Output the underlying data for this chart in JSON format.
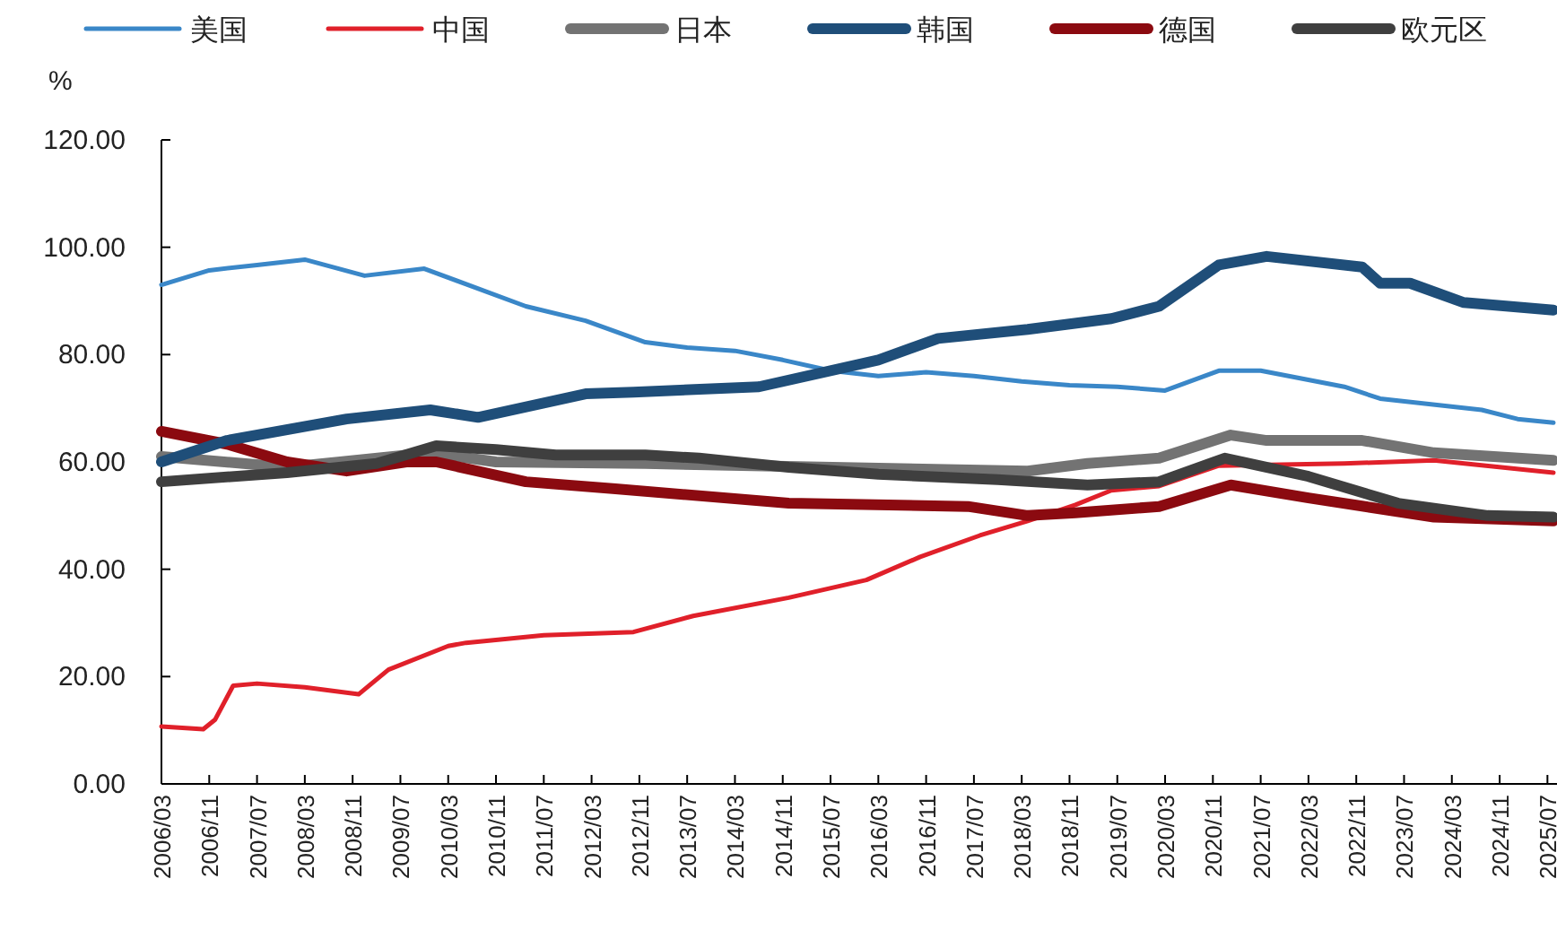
{
  "chart_data": {
    "type": "line",
    "ylabel": "%",
    "legend": "top",
    "line_style": "solid",
    "marker": "none",
    "xlim": [
      "2006-03",
      "2025-08"
    ],
    "ylim": [
      0,
      120
    ],
    "yticks": [
      {
        "value": 0,
        "label": "0.00"
      },
      {
        "value": 20,
        "label": "20.00"
      },
      {
        "value": 40,
        "label": "40.00"
      },
      {
        "value": 60,
        "label": "60.00"
      },
      {
        "value": 80,
        "label": "80.00"
      },
      {
        "value": 100,
        "label": "100.00"
      },
      {
        "value": 120,
        "label": "120.00"
      }
    ],
    "xticks": [
      {
        "value": "2006-03",
        "label": "2006/03"
      },
      {
        "value": "2006-11",
        "label": "2006/11"
      },
      {
        "value": "2007-07",
        "label": "2007/07"
      },
      {
        "value": "2008-03",
        "label": "2008/03"
      },
      {
        "value": "2008-11",
        "label": "2008/11"
      },
      {
        "value": "2009-07",
        "label": "2009/07"
      },
      {
        "value": "2010-03",
        "label": "2010/03"
      },
      {
        "value": "2010-11",
        "label": "2010/11"
      },
      {
        "value": "2011-07",
        "label": "2011/07"
      },
      {
        "value": "2012-03",
        "label": "2012/03"
      },
      {
        "value": "2012-11",
        "label": "2012/11"
      },
      {
        "value": "2013-07",
        "label": "2013/07"
      },
      {
        "value": "2014-03",
        "label": "2014/03"
      },
      {
        "value": "2014-11",
        "label": "2014/11"
      },
      {
        "value": "2015-07",
        "label": "2015/07"
      },
      {
        "value": "2016-03",
        "label": "2016/03"
      },
      {
        "value": "2016-11",
        "label": "2016/11"
      },
      {
        "value": "2017-07",
        "label": "2017/07"
      },
      {
        "value": "2018-03",
        "label": "2018/03"
      },
      {
        "value": "2018-11",
        "label": "2018/11"
      },
      {
        "value": "2019-07",
        "label": "2019/07"
      },
      {
        "value": "2020-03",
        "label": "2020/03"
      },
      {
        "value": "2020-11",
        "label": "2020/11"
      },
      {
        "value": "2021-07",
        "label": "2021/07"
      },
      {
        "value": "2022-03",
        "label": "2022/03"
      },
      {
        "value": "2022-11",
        "label": "2022/11"
      },
      {
        "value": "2023-07",
        "label": "2023/07"
      },
      {
        "value": "2024-03",
        "label": "2024/03"
      },
      {
        "value": "2024-11",
        "label": "2024/11"
      },
      {
        "value": "2025-07",
        "label": "2025/07"
      }
    ],
    "series": [
      {
        "name": "美国",
        "color": "#3a87c8",
        "x": [
          "2006-03",
          "2006-11",
          "2007-07",
          "2008-03",
          "2009-01",
          "2009-11",
          "2011-04",
          "2012-02",
          "2012-12",
          "2013-07",
          "2014-03",
          "2014-11",
          "2015-07",
          "2016-03",
          "2016-11",
          "2017-07",
          "2018-03",
          "2018-11",
          "2019-07",
          "2020-03",
          "2020-12",
          "2021-07",
          "2022-09",
          "2023-03",
          "2024-08",
          "2025-02",
          "2025-08"
        ],
        "values": [
          93,
          95.7,
          96.7,
          97.7,
          94.7,
          96,
          89,
          86.3,
          82.3,
          81.3,
          80.7,
          79,
          77,
          76,
          76.7,
          76,
          75,
          74.3,
          74,
          73.3,
          77,
          77,
          74,
          71.8,
          69.7,
          68,
          67.3
        ]
      },
      {
        "name": "中国",
        "color": "#e0202a",
        "x": [
          "2006-03",
          "2006-10",
          "2006-12",
          "2007-03",
          "2007-07",
          "2008-03",
          "2008-12",
          "2009-05",
          "2010-03",
          "2010-06",
          "2011-07",
          "2012-10",
          "2013-08",
          "2014-12",
          "2016-01",
          "2016-10",
          "2017-08",
          "2018-04",
          "2018-12",
          "2019-06",
          "2020-02",
          "2020-12",
          "2022-09",
          "2023-12",
          "2025-08"
        ],
        "values": [
          10.7,
          10.2,
          12,
          18.3,
          18.7,
          18,
          16.7,
          21.3,
          25.7,
          26.3,
          27.7,
          28.3,
          31.3,
          34.7,
          38,
          42.3,
          46.3,
          49,
          52,
          54.7,
          55.5,
          59.3,
          59.7,
          60.3,
          58
        ]
      },
      {
        "name": "日本",
        "color": "#737373",
        "x": [
          "2006-03",
          "2007-12",
          "2009-12",
          "2010-11",
          "2012-12",
          "2018-04",
          "2019-02",
          "2020-02",
          "2021-02",
          "2021-08",
          "2022-12",
          "2023-12",
          "2025-08"
        ],
        "values": [
          61,
          59,
          61.7,
          60,
          59.7,
          58.3,
          59.7,
          60.7,
          65,
          64,
          64,
          61.7,
          60.3
        ]
      },
      {
        "name": "韩国",
        "color": "#1f4e79",
        "x": [
          "2006-03",
          "2007-02",
          "2008-10",
          "2009-12",
          "2010-08",
          "2012-02",
          "2012-10",
          "2014-07",
          "2016-03",
          "2017-01",
          "2018-04",
          "2019-06",
          "2020-02",
          "2020-12",
          "2021-08",
          "2022-12",
          "2023-03",
          "2023-08",
          "2024-05",
          "2025-08"
        ],
        "values": [
          60,
          64,
          68,
          69.7,
          68.3,
          72.7,
          73,
          74,
          79,
          83,
          84.7,
          86.7,
          89,
          96.7,
          98.3,
          96.3,
          93.3,
          93.3,
          89.7,
          88.3
        ]
      },
      {
        "name": "德国",
        "color": "#8b0a10",
        "x": [
          "2006-03",
          "2007-02",
          "2007-12",
          "2008-10",
          "2009-08",
          "2010-01",
          "2011-04",
          "2012-07",
          "2014-12",
          "2017-06",
          "2018-04",
          "2018-12",
          "2020-02",
          "2021-02",
          "2022-03",
          "2023-12",
          "2025-08"
        ],
        "values": [
          65.7,
          63.3,
          60,
          58.3,
          60,
          60,
          56.3,
          55,
          52.3,
          51.7,
          50,
          50.5,
          51.7,
          55.7,
          53.3,
          49.7,
          49
        ]
      },
      {
        "name": "欧元区",
        "color": "#3f3f3f",
        "x": [
          "2006-03",
          "2007-12",
          "2009-03",
          "2010-01",
          "2010-11",
          "2011-09",
          "2012-12",
          "2013-09",
          "2014-12",
          "2016-03",
          "2017-11",
          "2019-02",
          "2020-02",
          "2021-01",
          "2022-03",
          "2023-06",
          "2024-09",
          "2025-08"
        ],
        "values": [
          56.3,
          58,
          59.7,
          63,
          62.3,
          61.3,
          61.3,
          60.7,
          59,
          57.7,
          56.7,
          55.7,
          56.3,
          60.7,
          57.3,
          52.3,
          50,
          49.7
        ]
      }
    ]
  }
}
